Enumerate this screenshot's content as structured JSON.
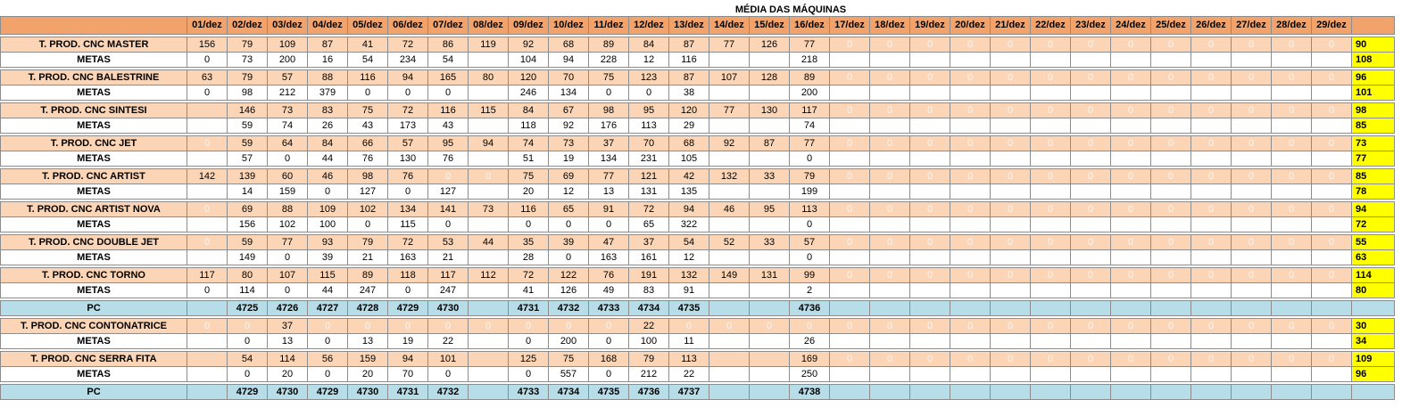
{
  "sheet": {
    "title": "MÉDIA DAS MÁQUINAS",
    "days": [
      "01/dez",
      "02/dez",
      "03/dez",
      "04/dez",
      "05/dez",
      "06/dez",
      "07/dez",
      "08/dez",
      "09/dez",
      "10/dez",
      "11/dez",
      "12/dez",
      "13/dez",
      "14/dez",
      "15/dez",
      "16/dez",
      "17/dez",
      "18/dez",
      "19/dez",
      "20/dez",
      "21/dez",
      "22/dez",
      "23/dez",
      "24/dez",
      "25/dez",
      "26/dez",
      "27/dez",
      "28/dez",
      "29/dez"
    ],
    "rows": [
      {
        "type": "prod",
        "label": "T. PROD. CNC MASTER",
        "values": [
          "156",
          "79",
          "109",
          "87",
          "41",
          "72",
          "86",
          "119",
          "92",
          "68",
          "89",
          "84",
          "87",
          "77",
          "126",
          "77",
          "0",
          "0",
          "0",
          "0",
          "0",
          "0",
          "0",
          "0",
          "0",
          "0",
          "0",
          "0",
          "0"
        ],
        "total": "90"
      },
      {
        "type": "meta",
        "label": "METAS",
        "values": [
          "0",
          "73",
          "200",
          "16",
          "54",
          "234",
          "54",
          "",
          "104",
          "94",
          "228",
          "12",
          "116",
          "",
          "",
          "218",
          "",
          "",
          "",
          "",
          "",
          "",
          "",
          "",
          "",
          "",
          "",
          "",
          ""
        ],
        "total": "108"
      },
      {
        "type": "prod",
        "label": "T. PROD. CNC BALESTRINE",
        "values": [
          "63",
          "79",
          "57",
          "88",
          "116",
          "94",
          "165",
          "80",
          "120",
          "70",
          "75",
          "123",
          "87",
          "107",
          "128",
          "89",
          "0",
          "0",
          "0",
          "0",
          "0",
          "0",
          "0",
          "0",
          "0",
          "0",
          "0",
          "0",
          "0"
        ],
        "total": "96"
      },
      {
        "type": "meta",
        "label": "METAS",
        "values": [
          "0",
          "98",
          "212",
          "379",
          "0",
          "0",
          "0",
          "",
          "246",
          "134",
          "0",
          "0",
          "38",
          "",
          "",
          "200",
          "",
          "",
          "",
          "",
          "",
          "",
          "",
          "",
          "",
          "",
          "",
          "",
          ""
        ],
        "total": "101"
      },
      {
        "type": "prod",
        "label": "T. PROD. CNC SINTESI",
        "values": [
          "",
          "146",
          "73",
          "83",
          "75",
          "72",
          "116",
          "115",
          "84",
          "67",
          "98",
          "95",
          "120",
          "77",
          "130",
          "117",
          "0",
          "0",
          "0",
          "0",
          "0",
          "0",
          "0",
          "0",
          "0",
          "0",
          "0",
          "0",
          "0"
        ],
        "total": "98"
      },
      {
        "type": "meta",
        "label": "METAS",
        "values": [
          "",
          "59",
          "74",
          "26",
          "43",
          "173",
          "43",
          "",
          "118",
          "92",
          "176",
          "113",
          "29",
          "",
          "",
          "74",
          "",
          "",
          "",
          "",
          "",
          "",
          "",
          "",
          "",
          "",
          "",
          "",
          ""
        ],
        "total": "85"
      },
      {
        "type": "prod",
        "label": "T. PROD. CNC JET",
        "values": [
          "0",
          "59",
          "64",
          "84",
          "66",
          "57",
          "95",
          "94",
          "74",
          "73",
          "37",
          "70",
          "68",
          "92",
          "87",
          "77",
          "0",
          "0",
          "0",
          "0",
          "0",
          "0",
          "0",
          "0",
          "0",
          "0",
          "0",
          "0",
          "0"
        ],
        "total": "73"
      },
      {
        "type": "meta",
        "label": "METAS",
        "values": [
          "",
          "57",
          "0",
          "44",
          "76",
          "130",
          "76",
          "",
          "51",
          "19",
          "134",
          "231",
          "105",
          "",
          "",
          "0",
          "",
          "",
          "",
          "",
          "",
          "",
          "",
          "",
          "",
          "",
          "",
          "",
          ""
        ],
        "total": "77"
      },
      {
        "type": "prod",
        "label": "T. PROD. CNC ARTIST",
        "values": [
          "142",
          "139",
          "60",
          "46",
          "98",
          "76",
          "0",
          "0",
          "75",
          "69",
          "77",
          "121",
          "42",
          "132",
          "33",
          "79",
          "0",
          "0",
          "0",
          "0",
          "0",
          "0",
          "0",
          "0",
          "0",
          "0",
          "0",
          "0",
          "0"
        ],
        "total": "85"
      },
      {
        "type": "meta",
        "label": "METAS",
        "values": [
          "",
          "14",
          "159",
          "0",
          "127",
          "0",
          "127",
          "",
          "20",
          "12",
          "13",
          "131",
          "135",
          "",
          "",
          "199",
          "",
          "",
          "",
          "",
          "",
          "",
          "",
          "",
          "",
          "",
          "",
          "",
          ""
        ],
        "total": "78"
      },
      {
        "type": "prod",
        "label": "T. PROD. CNC ARTIST NOVA",
        "values": [
          "0",
          "69",
          "88",
          "109",
          "102",
          "134",
          "141",
          "73",
          "116",
          "65",
          "91",
          "72",
          "94",
          "46",
          "95",
          "113",
          "0",
          "0",
          "0",
          "0",
          "0",
          "0",
          "0",
          "0",
          "0",
          "0",
          "0",
          "0",
          "0"
        ],
        "total": "94"
      },
      {
        "type": "meta",
        "label": "METAS",
        "values": [
          "",
          "156",
          "102",
          "100",
          "0",
          "115",
          "0",
          "",
          "0",
          "0",
          "0",
          "65",
          "322",
          "",
          "",
          "0",
          "",
          "",
          "",
          "",
          "",
          "",
          "",
          "",
          "",
          "",
          "",
          "",
          ""
        ],
        "total": "72"
      },
      {
        "type": "prod",
        "label": "T. PROD. CNC DOUBLE JET",
        "values": [
          "0",
          "59",
          "77",
          "93",
          "79",
          "72",
          "53",
          "44",
          "35",
          "39",
          "47",
          "37",
          "54",
          "52",
          "33",
          "57",
          "0",
          "0",
          "0",
          "0",
          "0",
          "0",
          "0",
          "0",
          "0",
          "0",
          "0",
          "0",
          "0"
        ],
        "total": "55"
      },
      {
        "type": "meta",
        "label": "METAS",
        "values": [
          "",
          "149",
          "0",
          "39",
          "21",
          "163",
          "21",
          "",
          "28",
          "0",
          "163",
          "161",
          "12",
          "",
          "",
          "0",
          "",
          "",
          "",
          "",
          "",
          "",
          "",
          "",
          "",
          "",
          "",
          "",
          ""
        ],
        "total": "63"
      },
      {
        "type": "prod",
        "label": "T. PROD. CNC TORNO",
        "values": [
          "117",
          "80",
          "107",
          "115",
          "89",
          "118",
          "117",
          "112",
          "72",
          "122",
          "76",
          "191",
          "132",
          "149",
          "131",
          "99",
          "0",
          "0",
          "0",
          "0",
          "0",
          "0",
          "0",
          "0",
          "0",
          "0",
          "0",
          "0",
          "0"
        ],
        "total": "114"
      },
      {
        "type": "meta",
        "label": "METAS",
        "values": [
          "0",
          "114",
          "0",
          "44",
          "247",
          "0",
          "247",
          "",
          "41",
          "126",
          "49",
          "83",
          "91",
          "",
          "",
          "2",
          "",
          "",
          "",
          "",
          "",
          "",
          "",
          "",
          "",
          "",
          "",
          "",
          ""
        ],
        "total": "80"
      },
      {
        "type": "pc",
        "label": "PC",
        "values": [
          "",
          "4725",
          "4726",
          "4727",
          "4728",
          "4729",
          "4730",
          "",
          "4731",
          "4732",
          "4733",
          "4734",
          "4735",
          "",
          "",
          "4736",
          "",
          "",
          "",
          "",
          "",
          "",
          "",
          "",
          "",
          "",
          "",
          "",
          ""
        ],
        "total": ""
      },
      {
        "type": "prod",
        "label": "T. PROD. CNC CONTONATRICE",
        "values": [
          "0",
          "0",
          "37",
          "0",
          "0",
          "0",
          "0",
          "0",
          "0",
          "0",
          "0",
          "22",
          "0",
          "0",
          "0",
          "0",
          "0",
          "0",
          "0",
          "0",
          "0",
          "0",
          "0",
          "0",
          "0",
          "0",
          "0",
          "0",
          "0"
        ],
        "total": "30"
      },
      {
        "type": "meta",
        "label": "METAS",
        "values": [
          "",
          "0",
          "13",
          "0",
          "13",
          "19",
          "22",
          "",
          "0",
          "200",
          "0",
          "100",
          "11",
          "",
          "",
          "26",
          "",
          "",
          "",
          "",
          "",
          "",
          "",
          "",
          "",
          "",
          "",
          "",
          ""
        ],
        "total": "34"
      },
      {
        "type": "prod",
        "label": "T. PROD. CNC SERRA FITA",
        "values": [
          "",
          "54",
          "114",
          "56",
          "159",
          "94",
          "101",
          "",
          "125",
          "75",
          "168",
          "79",
          "113",
          "",
          "",
          "169",
          "0",
          "0",
          "0",
          "0",
          "0",
          "0",
          "0",
          "0",
          "0",
          "0",
          "0",
          "0",
          "0"
        ],
        "total": "109"
      },
      {
        "type": "meta",
        "label": "METAS",
        "values": [
          "",
          "0",
          "20",
          "0",
          "20",
          "70",
          "0",
          "",
          "0",
          "557",
          "0",
          "212",
          "22",
          "",
          "",
          "250",
          "",
          "",
          "",
          "",
          "",
          "",
          "",
          "",
          "",
          "",
          "",
          "",
          ""
        ],
        "total": "96"
      },
      {
        "type": "pc",
        "label": "PC",
        "values": [
          "",
          "4729",
          "4730",
          "4729",
          "4730",
          "4731",
          "4732",
          "",
          "4733",
          "4734",
          "4735",
          "4736",
          "4737",
          "",
          "",
          "4738",
          "",
          "",
          "",
          "",
          "",
          "",
          "",
          "",
          "",
          "",
          "",
          "",
          ""
        ],
        "total": ""
      }
    ]
  }
}
